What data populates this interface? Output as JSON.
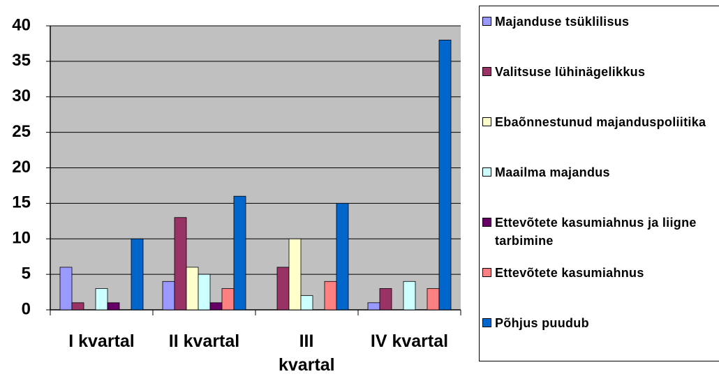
{
  "chart_data": {
    "type": "bar",
    "categories": [
      "I kvartal",
      "II kvartal",
      "III kvartal",
      "IV kvartal"
    ],
    "series": [
      {
        "name": "Majanduse tsüklilisus",
        "color": "#9999ff",
        "values": [
          6,
          4,
          0,
          1
        ]
      },
      {
        "name": "Valitsuse lühinägelikkus",
        "color": "#993366",
        "values": [
          1,
          13,
          6,
          3
        ]
      },
      {
        "name": "Ebaõnnestunud majanduspoliitika",
        "color": "#ffffcc",
        "values": [
          0,
          6,
          10,
          0
        ]
      },
      {
        "name": "Maailma majandus",
        "color": "#ccffff",
        "values": [
          3,
          5,
          2,
          4
        ]
      },
      {
        "name": "Ettevõtete kasumiahnus ja liigne tarbimine",
        "color": "#660066",
        "values": [
          1,
          1,
          0,
          0
        ]
      },
      {
        "name": "Ettevõtete kasumiahnus",
        "color": "#ff8080",
        "values": [
          0,
          3,
          4,
          3
        ]
      },
      {
        "name": "Põhjus puudub",
        "color": "#0066cc",
        "values": [
          10,
          16,
          15,
          38
        ]
      }
    ],
    "ylim": [
      0,
      40
    ],
    "yticks": [
      0,
      5,
      10,
      15,
      20,
      25,
      30,
      35,
      40
    ],
    "grid": true,
    "legend": "right"
  }
}
